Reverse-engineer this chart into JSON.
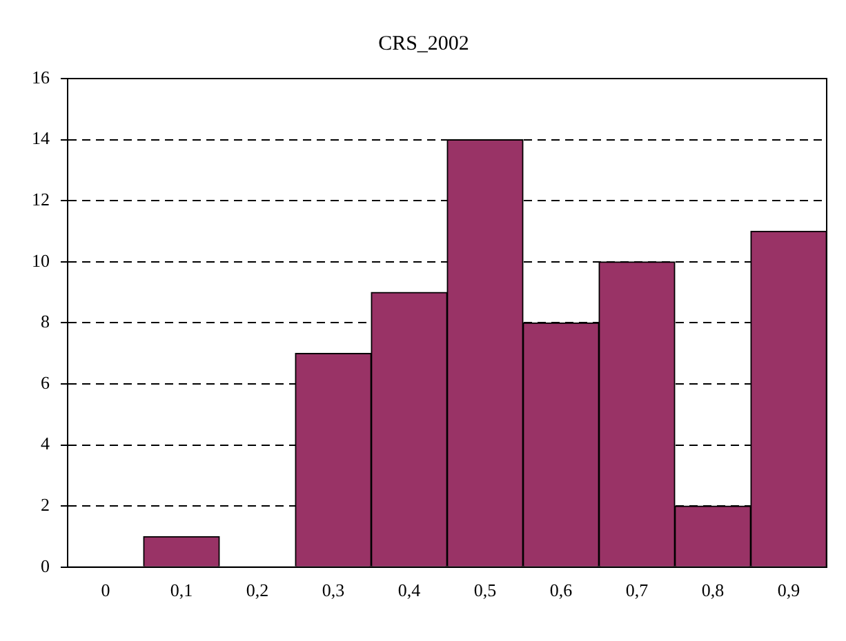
{
  "chart_data": {
    "type": "bar",
    "title": "CRS_2002",
    "categories": [
      "0",
      "0,1",
      "0,2",
      "0,3",
      "0,4",
      "0,5",
      "0,6",
      "0,7",
      "0,8",
      "0,9"
    ],
    "values": [
      0,
      1,
      0,
      7,
      9,
      14,
      8,
      10,
      2,
      11
    ],
    "color": "#993366",
    "ylim": [
      0,
      16
    ],
    "yticks": [
      0,
      2,
      4,
      6,
      8,
      10,
      12,
      14,
      16
    ],
    "grid": "y"
  }
}
